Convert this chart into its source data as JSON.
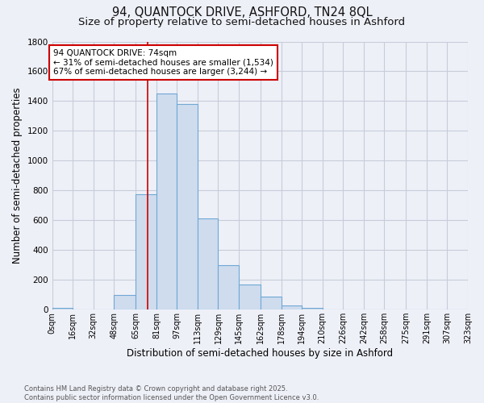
{
  "title1": "94, QUANTOCK DRIVE, ASHFORD, TN24 8QL",
  "title2": "Size of property relative to semi-detached houses in Ashford",
  "xlabel": "Distribution of semi-detached houses by size in Ashford",
  "ylabel": "Number of semi-detached properties",
  "footnote1": "Contains HM Land Registry data © Crown copyright and database right 2025.",
  "footnote2": "Contains public sector information licensed under the Open Government Licence v3.0.",
  "bar_edges": [
    0,
    16,
    32,
    48,
    65,
    81,
    97,
    113,
    129,
    145,
    162,
    178,
    194,
    210,
    226,
    242,
    258,
    275,
    291,
    307,
    323
  ],
  "bar_heights": [
    10,
    0,
    0,
    100,
    775,
    1450,
    1380,
    615,
    300,
    170,
    90,
    30,
    10,
    0,
    0,
    0,
    0,
    0,
    0,
    0
  ],
  "tick_labels": [
    "0sqm",
    "16sqm",
    "32sqm",
    "48sqm",
    "65sqm",
    "81sqm",
    "97sqm",
    "113sqm",
    "129sqm",
    "145sqm",
    "162sqm",
    "178sqm",
    "194sqm",
    "210sqm",
    "226sqm",
    "242sqm",
    "258sqm",
    "275sqm",
    "291sqm",
    "307sqm",
    "323sqm"
  ],
  "bar_color": "#cfdcee",
  "bar_edge_color": "#6fa8d4",
  "property_line_x": 74,
  "property_line_color": "#cc0000",
  "annotation_title": "94 QUANTOCK DRIVE: 74sqm",
  "annotation_line1": "← 31% of semi-detached houses are smaller (1,534)",
  "annotation_line2": "67% of semi-detached houses are larger (3,244) →",
  "annotation_box_color": "#cc0000",
  "ylim": [
    0,
    1800
  ],
  "background_color": "#eef0f8",
  "grid_color": "#c8ccd8",
  "title_fontsize": 10.5,
  "subtitle_fontsize": 9.5,
  "axis_label_fontsize": 8.5,
  "tick_fontsize": 7.0,
  "annot_fontsize": 7.5
}
